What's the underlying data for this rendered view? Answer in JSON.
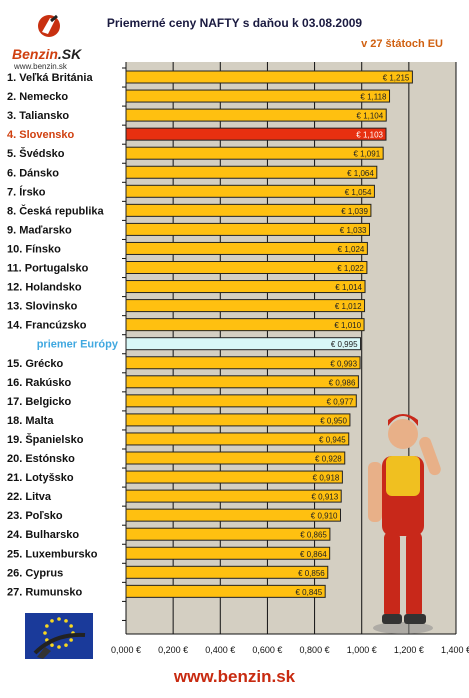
{
  "logo": {
    "brand": "Benzin",
    "suffix": ".SK",
    "url": "www.benzin.sk"
  },
  "footer_url": "www.benzin.sk",
  "colors": {
    "bar": "#ffc010",
    "highlight": "#e83010",
    "average": "#d8f8f8",
    "plot_bg": "#d4cfc2",
    "label_highlight": "#d04010",
    "label_average": "#40a8e0",
    "footer": "#c82a10"
  },
  "chart_data": {
    "type": "bar",
    "orientation": "horizontal",
    "title": "Priemerné ceny NAFTY s daňou k 03.08.2009",
    "subtitle": "v 27 štátoch EU",
    "categories": [
      "1. Veľká Británia",
      "2. Nemecko",
      "3. Taliansko",
      "4. Slovensko",
      "5. Švédsko",
      "6. Dánsko",
      "7. Írsko",
      "8. Česká republika",
      "9. Maďarsko",
      "10. Fínsko",
      "11. Portugalsko",
      "12. Holandsko",
      "13. Slovinsko",
      "14. Francúzsko",
      "priemer Európy",
      "15. Grécko",
      "16. Rakúsko",
      "17. Belgicko",
      "18. Malta",
      "19. Španielsko",
      "20. Estónsko",
      "21. Lotyšsko",
      "22. Litva",
      "23. Poľsko",
      "24. Bulharsko",
      "25. Luxembursko",
      "26. Cyprus",
      "27. Rumunsko"
    ],
    "values": [
      1.215,
      1.118,
      1.104,
      1.103,
      1.091,
      1.064,
      1.054,
      1.039,
      1.033,
      1.024,
      1.022,
      1.014,
      1.012,
      1.01,
      0.995,
      0.993,
      0.986,
      0.977,
      0.95,
      0.945,
      0.928,
      0.918,
      0.913,
      0.91,
      0.865,
      0.864,
      0.856,
      0.845
    ],
    "value_labels": [
      "€ 1,215",
      "€ 1,118",
      "€ 1,104",
      "€ 1,103",
      "€ 1,091",
      "€ 1,064",
      "€ 1,054",
      "€ 1,039",
      "€ 1,033",
      "€ 1,024",
      "€ 1,022",
      "€ 1,014",
      "€ 1,012",
      "€ 1,010",
      "€ 0,995",
      "€ 0,993",
      "€ 0,986",
      "€ 0,977",
      "€ 0,950",
      "€ 0,945",
      "€ 0,928",
      "€ 0,918",
      "€ 0,913",
      "€ 0,910",
      "€ 0,865",
      "€ 0,864",
      "€ 0,856",
      "€ 0,845"
    ],
    "highlight_index": 3,
    "average_index": 14,
    "xlim": [
      0,
      1.4
    ],
    "xticks": [
      0,
      0.2,
      0.4,
      0.6,
      0.8,
      1.0,
      1.2,
      1.4
    ],
    "xtick_labels": [
      "0,000 €",
      "0,200 €",
      "0,400 €",
      "0,600 €",
      "0,800 €",
      "1,000 €",
      "1,200 €",
      "1,400 €"
    ],
    "grid": true
  }
}
